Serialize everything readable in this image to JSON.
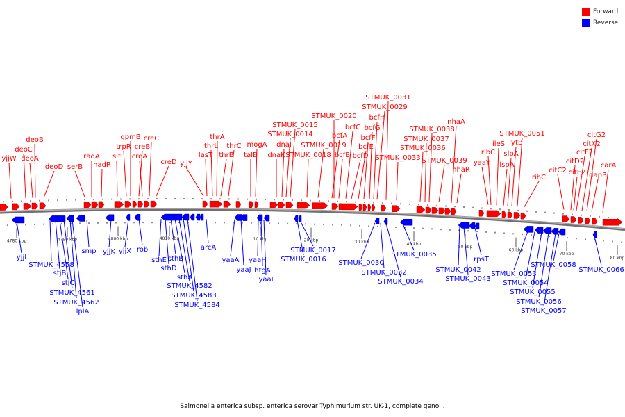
{
  "legend": {
    "forward_label": "Forward",
    "reverse_label": "Reverse",
    "forward_color": "#ff0000",
    "reverse_color": "#0000ff"
  },
  "caption": "Salmonella enterica subsp. enterica serovar Typhimurium str. UK-1, complete geno...",
  "scale_labels": [
    "4780 kbp",
    "4790 kbp",
    "4800 kbp",
    "4810 kbp",
    "10 kbp",
    "20 kbp",
    "30 kbp",
    "40 kbp",
    "50 kbp",
    "60 kbp",
    "70 kbp",
    "80 kbp"
  ],
  "forward_genes": [
    "yjjW",
    "deoC",
    "deoB",
    "deoA",
    "deoD",
    "serB",
    "radA",
    "nadR",
    "slt",
    "trpR",
    "gpmB",
    "creB",
    "creA",
    "creC",
    "creD",
    "yjjY",
    "lasT",
    "thrL",
    "thrA",
    "thrB",
    "thrC",
    "talB",
    "mogA",
    "dnaK",
    "dnaJ",
    "STMUK_0014",
    "STMUK_0015",
    "STMUK_0018",
    "STMUK_0019",
    "bcfA",
    "bcfB",
    "STMUK_0020",
    "bcfC",
    "bcfD",
    "bcfE",
    "bcfF",
    "bcfG",
    "bcfH",
    "STMUK_0029",
    "STMUK_0031",
    "STMUK_0033",
    "STMUK_0036",
    "STMUK_0037",
    "STMUK_0038",
    "STMUK_0039",
    "nhaA",
    "nhaR",
    "yaaY",
    "ribC",
    "ileS",
    "lspA",
    "slpA",
    "lytB",
    "STMUK_0051",
    "rihC",
    "citC2",
    "citD2",
    "citE2",
    "citF2",
    "citX2",
    "citG2",
    "dapB",
    "carA"
  ],
  "reverse_genes": [
    "yjjI",
    "STMUK_4558",
    "stjB",
    "stjC",
    "STMUK_4561",
    "STMUK_4562",
    "lplA",
    "smp",
    "yjjK",
    "yjjX",
    "rob",
    "sthE",
    "sthD",
    "sthB",
    "sthA",
    "STMUK_4582",
    "STMUK_4583",
    "STMUK_4584",
    "arcA",
    "yaaA",
    "yaaJ",
    "yaaH",
    "htgA",
    "yaaI",
    "STMUK_0016",
    "STMUK_0017",
    "STMUK_0030",
    "STMUK_0032",
    "STMUK_0034",
    "STMUK_0035",
    "STMUK_0042",
    "STMUK_0043",
    "rpsT",
    "STMUK_0053",
    "STMUK_0054",
    "STMUK_0055",
    "STMUK_0056",
    "STMUK_0057",
    "STMUK_0058",
    "STMUK_0066"
  ]
}
